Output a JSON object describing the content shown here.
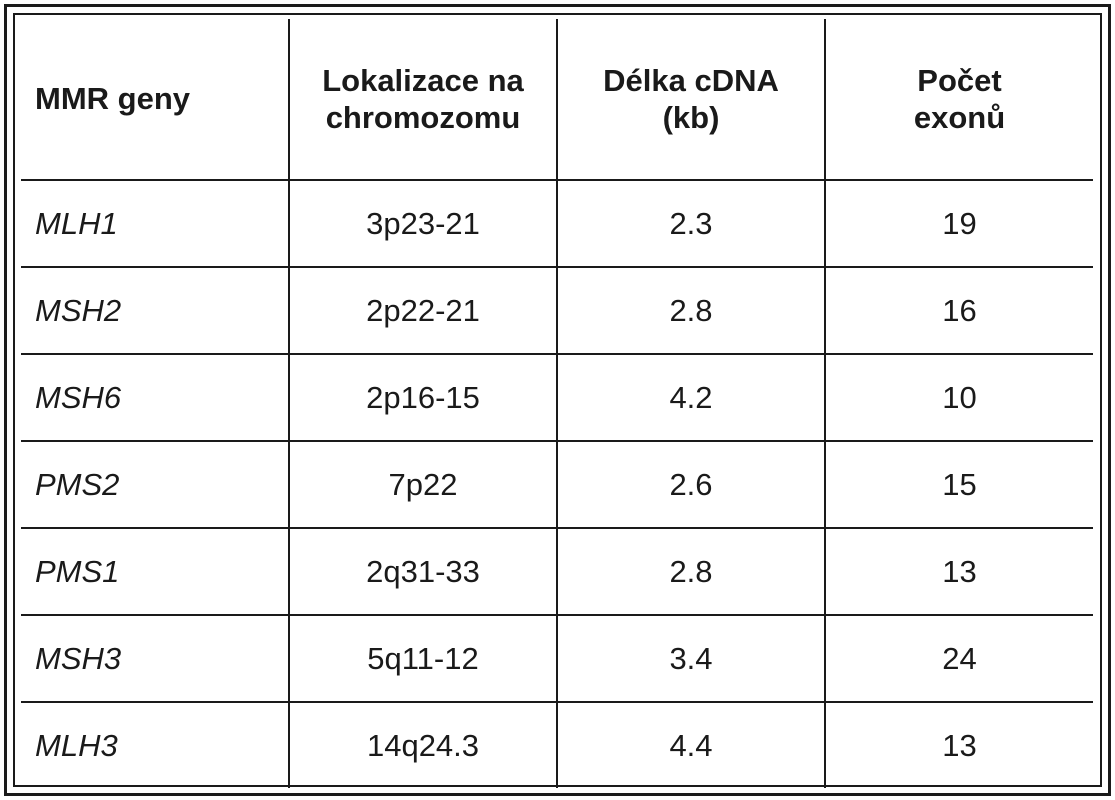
{
  "table": {
    "headers": [
      "MMR geny",
      "Lokalizace na\nchromozomu",
      "Délka cDNA\n(kb)",
      "Počet\nexonů"
    ],
    "rows": [
      [
        "MLH1",
        "3p23-21",
        "2.3",
        "19"
      ],
      [
        "MSH2",
        "2p22-21",
        "2.8",
        "16"
      ],
      [
        "MSH6",
        "2p16-15",
        "4.2",
        "10"
      ],
      [
        "PMS2",
        "7p22",
        "2.6",
        "15"
      ],
      [
        "PMS1",
        "2q31-33",
        "2.8",
        "13"
      ],
      [
        "MSH3",
        "5q11-12",
        "3.4",
        "24"
      ],
      [
        "MLH3",
        "14q24.3",
        "4.4",
        "13"
      ]
    ]
  }
}
